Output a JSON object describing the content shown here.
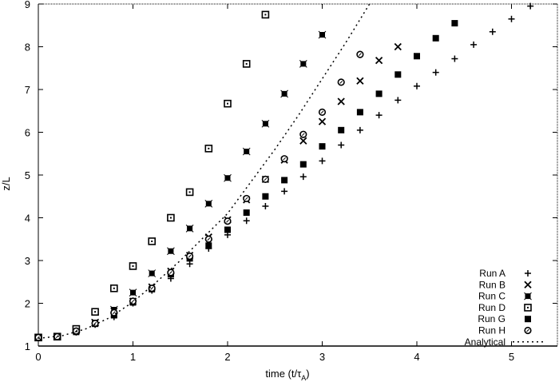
{
  "chart_data": {
    "type": "scatter",
    "title": "",
    "xlabel": "time (t/τ_A)",
    "xlabel_main": "time (t/τ",
    "xlabel_sub": "A",
    "xlabel_close": ")",
    "ylabel": "z/L",
    "xlim": [
      0,
      5.5
    ],
    "ylim": [
      1,
      9
    ],
    "xticks": [
      0,
      1,
      2,
      3,
      4,
      5
    ],
    "yticks": [
      1,
      2,
      3,
      4,
      5,
      6,
      7,
      8,
      9
    ],
    "grid": false,
    "legend_position": "lower right",
    "series": [
      {
        "name": "Run A",
        "marker": "plus",
        "x": [
          0,
          0.2,
          0.4,
          0.6,
          0.8,
          1.0,
          1.2,
          1.4,
          1.6,
          1.8,
          2.0,
          2.2,
          2.4,
          2.6,
          2.8,
          3.0,
          3.2,
          3.4,
          3.6,
          3.8,
          4.0,
          4.2,
          4.4,
          4.6,
          4.8,
          5.0,
          5.2
        ],
        "y": [
          1.2,
          1.22,
          1.32,
          1.5,
          1.68,
          2.0,
          2.3,
          2.58,
          2.92,
          3.28,
          3.6,
          3.93,
          4.27,
          4.62,
          4.96,
          5.33,
          5.7,
          6.05,
          6.4,
          6.75,
          7.08,
          7.4,
          7.72,
          8.05,
          8.35,
          8.65,
          8.95
        ]
      },
      {
        "name": "Run B",
        "marker": "cross",
        "x": [
          0,
          0.2,
          0.4,
          0.6,
          0.8,
          1.0,
          1.2,
          1.4,
          1.6,
          1.8,
          2.0,
          2.2,
          2.4,
          2.6,
          2.8,
          3.0,
          3.2,
          3.4,
          3.6,
          3.8
        ],
        "y": [
          1.2,
          1.22,
          1.36,
          1.55,
          1.82,
          2.05,
          2.38,
          2.75,
          3.12,
          3.55,
          3.95,
          4.42,
          4.9,
          5.35,
          5.8,
          6.25,
          6.72,
          7.2,
          7.68,
          8.0
        ]
      },
      {
        "name": "Run C",
        "marker": "boxed-star",
        "x": [
          0,
          0.2,
          0.4,
          0.6,
          0.8,
          1.0,
          1.2,
          1.4,
          1.6,
          1.8,
          2.0,
          2.2,
          2.4,
          2.6,
          2.8,
          3.0
        ],
        "y": [
          1.2,
          1.22,
          1.38,
          1.55,
          1.85,
          2.25,
          2.7,
          3.22,
          3.75,
          4.33,
          4.93,
          5.55,
          6.2,
          6.9,
          7.6,
          8.28
        ]
      },
      {
        "name": "Run D",
        "marker": "open-square",
        "x": [
          0,
          0.2,
          0.4,
          0.6,
          0.8,
          1.0,
          1.2,
          1.4,
          1.6,
          1.8,
          2.0,
          2.2,
          2.4
        ],
        "y": [
          1.2,
          1.22,
          1.4,
          1.8,
          2.35,
          2.87,
          3.45,
          4.0,
          4.6,
          5.62,
          6.67,
          7.6,
          8.75
        ]
      },
      {
        "name": "Run G",
        "marker": "filled-square",
        "x": [
          0,
          0.2,
          0.4,
          0.6,
          0.8,
          1.0,
          1.2,
          1.4,
          1.6,
          1.8,
          2.0,
          2.2,
          2.4,
          2.6,
          2.8,
          3.0,
          3.2,
          3.4,
          3.6,
          3.8,
          4.0,
          4.2,
          4.4
        ],
        "y": [
          1.2,
          1.22,
          1.33,
          1.52,
          1.72,
          2.02,
          2.33,
          2.68,
          3.05,
          3.35,
          3.72,
          4.12,
          4.5,
          4.88,
          5.25,
          5.67,
          6.05,
          6.47,
          6.9,
          7.35,
          7.78,
          8.2,
          8.55
        ]
      },
      {
        "name": "Run H",
        "marker": "open-circle",
        "x": [
          0,
          0.2,
          0.4,
          0.6,
          0.8,
          1.0,
          1.2,
          1.4,
          1.6,
          1.8,
          2.0,
          2.2,
          2.4,
          2.6,
          2.8,
          3.0,
          3.2,
          3.4
        ],
        "y": [
          1.2,
          1.22,
          1.35,
          1.53,
          1.78,
          2.05,
          2.35,
          2.72,
          3.1,
          3.5,
          3.92,
          4.45,
          4.9,
          5.38,
          5.95,
          6.47,
          7.17,
          7.82
        ]
      },
      {
        "name": "Analytical",
        "marker": "dotted-line",
        "x": [
          0,
          0.25,
          0.5,
          0.75,
          1.0,
          1.25,
          1.5,
          1.75,
          2.0,
          2.25,
          2.5,
          2.75,
          3.0,
          3.25,
          3.5
        ],
        "y": [
          1.18,
          1.24,
          1.4,
          1.66,
          2.03,
          2.5,
          3.0,
          3.55,
          4.1,
          4.85,
          5.6,
          6.4,
          7.25,
          8.1,
          9.0
        ]
      }
    ]
  }
}
